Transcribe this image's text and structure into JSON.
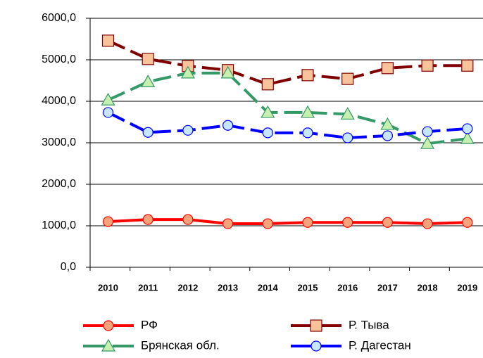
{
  "chart_data": {
    "type": "line",
    "categories": [
      "2010",
      "2011",
      "2012",
      "2013",
      "2014",
      "2015",
      "2016",
      "2017",
      "2018",
      "2019"
    ],
    "ylim": [
      0,
      6000
    ],
    "yticks": [
      {
        "value": 0,
        "label": "0,0"
      },
      {
        "value": 1000,
        "label": "1000,0"
      },
      {
        "value": 2000,
        "label": "2000,0"
      },
      {
        "value": 3000,
        "label": "3000,0"
      },
      {
        "value": 4000,
        "label": "4000,0"
      },
      {
        "value": 5000,
        "label": "5000,0"
      },
      {
        "value": 6000,
        "label": "6000,0"
      }
    ],
    "grid": true,
    "legend": "bottom",
    "series": [
      {
        "name": "РФ",
        "color": "#ff0000",
        "fill": "#f4a37a",
        "marker": "circle",
        "dashed": false,
        "values": [
          1100,
          1150,
          1150,
          1050,
          1050,
          1080,
          1080,
          1080,
          1050,
          1080
        ]
      },
      {
        "name": "Р. Тыва",
        "color": "#800000",
        "fill": "#f8c39b",
        "marker": "square",
        "dashed": true,
        "values": [
          5460,
          5020,
          4850,
          4750,
          4410,
          4630,
          4540,
          4800,
          4860,
          4860
        ]
      },
      {
        "name": "Брянская обл.",
        "color": "#339966",
        "fill": "#c6efb0",
        "marker": "triangle",
        "dashed": true,
        "values": [
          4030,
          4470,
          4680,
          4680,
          3730,
          3730,
          3690,
          3440,
          2980,
          3100
        ]
      },
      {
        "name": "Р. Дагестан",
        "color": "#0000ff",
        "fill": "#c7e6ff",
        "marker": "circle",
        "dashed": true,
        "values": [
          3730,
          3250,
          3300,
          3420,
          3240,
          3240,
          3120,
          3170,
          3270,
          3340
        ]
      }
    ]
  }
}
